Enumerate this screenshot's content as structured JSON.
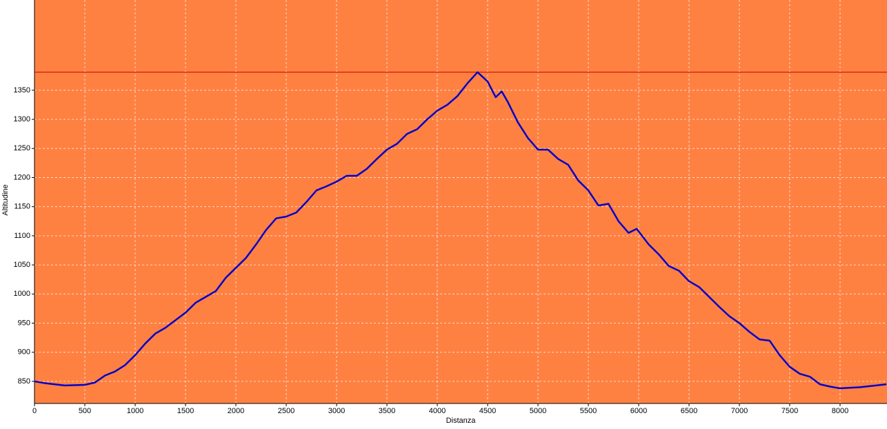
{
  "chart_data": {
    "type": "line",
    "x_label": "Distanza",
    "y_label": "Altitudine",
    "x": [
      0,
      100,
      300,
      500,
      600,
      700,
      800,
      900,
      1000,
      1100,
      1200,
      1300,
      1400,
      1500,
      1600,
      1700,
      1800,
      1900,
      2000,
      2100,
      2200,
      2300,
      2400,
      2500,
      2600,
      2700,
      2800,
      2900,
      3000,
      3100,
      3200,
      3300,
      3400,
      3500,
      3600,
      3700,
      3800,
      3900,
      4000,
      4100,
      4200,
      4300,
      4400,
      4500,
      4580,
      4640,
      4700,
      4800,
      4900,
      5000,
      5100,
      5200,
      5300,
      5400,
      5500,
      5600,
      5700,
      5800,
      5900,
      5980,
      6100,
      6200,
      6300,
      6400,
      6500,
      6600,
      6700,
      6800,
      6900,
      7000,
      7100,
      7200,
      7300,
      7400,
      7500,
      7600,
      7700,
      7800,
      7900,
      8000,
      8200,
      8460
    ],
    "series": [
      {
        "name": "Altitudine",
        "color": "#0000cc",
        "values": [
          850,
          847,
          843,
          844,
          848,
          860,
          867,
          878,
          895,
          915,
          932,
          942,
          955,
          968,
          985,
          995,
          1005,
          1028,
          1045,
          1062,
          1085,
          1110,
          1130,
          1133,
          1140,
          1158,
          1178,
          1185,
          1193,
          1203,
          1203,
          1215,
          1232,
          1248,
          1258,
          1275,
          1283,
          1300,
          1315,
          1325,
          1340,
          1362,
          1381,
          1365,
          1338,
          1348,
          1330,
          1295,
          1268,
          1248,
          1248,
          1232,
          1222,
          1195,
          1178,
          1152,
          1155,
          1125,
          1105,
          1112,
          1085,
          1068,
          1048,
          1040,
          1022,
          1012,
          995,
          978,
          962,
          950,
          935,
          922,
          920,
          895,
          875,
          863,
          858,
          845,
          841,
          838,
          840,
          845
        ]
      }
    ],
    "reference_line": {
      "value": 1381,
      "color": "#cc0000"
    },
    "background": "#fe8142",
    "xlim": [
      0,
      8466
    ],
    "ylim": [
      812,
      1505
    ],
    "xticks": [
      0,
      500,
      1000,
      1500,
      2000,
      2500,
      3000,
      3500,
      4000,
      4500,
      5000,
      5500,
      6000,
      6500,
      7000,
      7500,
      8000
    ],
    "yticks": [
      850,
      900,
      950,
      1000,
      1050,
      1100,
      1150,
      1200,
      1250,
      1300,
      1350
    ],
    "grid": true
  }
}
